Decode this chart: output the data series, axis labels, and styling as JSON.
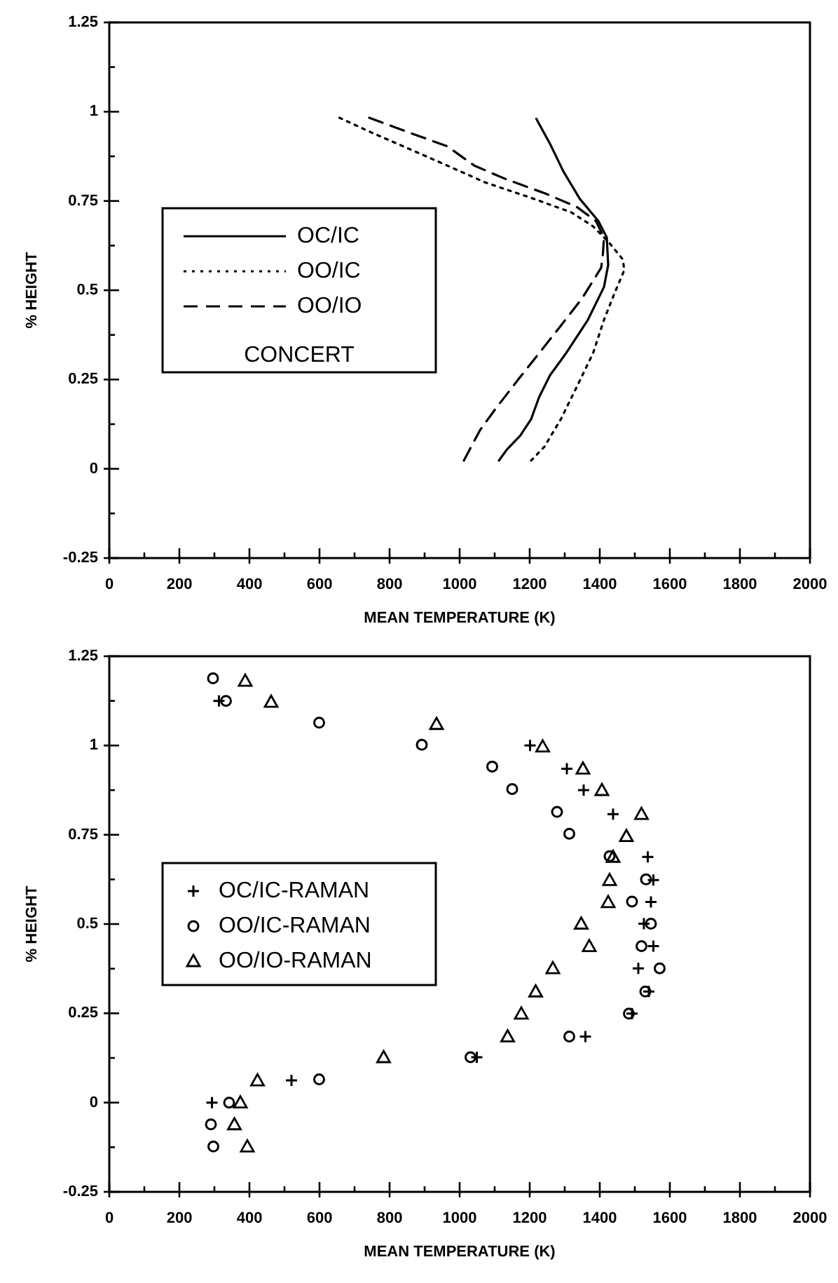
{
  "chart_data": [
    {
      "type": "line",
      "xlabel": "MEAN TEMPERATURE (K)",
      "ylabel": "% HEIGHT",
      "legend_title": "CONCERT",
      "legend": "center left",
      "grid": false,
      "xlim": [
        0,
        2000
      ],
      "ylim": [
        -0.25,
        1.25
      ],
      "xticks": [
        0,
        {
          "value": 100,
          "label": null
        },
        200,
        {
          "value": 300,
          "label": null
        },
        400,
        {
          "value": 500,
          "label": null
        },
        600,
        {
          "value": 700,
          "label": null
        },
        800,
        {
          "value": 900,
          "label": null
        },
        1000,
        {
          "value": 1100,
          "label": null
        },
        1200,
        {
          "value": 1300,
          "label": null
        },
        1400,
        {
          "value": 1500,
          "label": null
        },
        1600,
        {
          "value": 1700,
          "label": null
        },
        1800,
        {
          "value": 1900,
          "label": null
        },
        2000
      ],
      "yticks": [
        -0.25,
        {
          "value": -0.125,
          "label": null
        },
        0,
        {
          "value": 0.125,
          "label": null
        },
        0.25,
        {
          "value": 0.375,
          "label": null
        },
        0.5,
        {
          "value": 0.625,
          "label": null
        },
        0.75,
        {
          "value": 0.875,
          "label": null
        },
        1,
        {
          "value": 1.125,
          "label": null
        },
        1.25
      ],
      "series": [
        {
          "name": "OC/IC",
          "color": "#000000",
          "line_style": "solid",
          "x": [
            1219,
            1258,
            1296,
            1343,
            1396,
            1420,
            1424,
            1412,
            1366,
            1304,
            1258,
            1227,
            1204,
            1173,
            1135,
            1112
          ],
          "values": [
            0.98,
            0.91,
            0.833,
            0.756,
            0.694,
            0.648,
            0.571,
            0.509,
            0.417,
            0.324,
            0.262,
            0.201,
            0.139,
            0.093,
            0.054,
            0.023
          ]
        },
        {
          "name": "OO/IC",
          "color": "#000000",
          "line_style": "dotted",
          "x": [
            657,
            750,
            858,
            965,
            1073,
            1212,
            1319,
            1381,
            1427,
            1466,
            1470,
            1443,
            1412,
            1381,
            1335,
            1289,
            1242,
            1204
          ],
          "values": [
            0.983,
            0.941,
            0.895,
            0.849,
            0.802,
            0.756,
            0.718,
            0.679,
            0.633,
            0.586,
            0.556,
            0.494,
            0.417,
            0.324,
            0.231,
            0.139,
            0.062,
            0.023
          ]
        },
        {
          "name": "OO/IO",
          "color": "#000000",
          "line_style": "dashed",
          "x": [
            742,
            858,
            965,
            1042,
            1135,
            1242,
            1335,
            1389,
            1412,
            1409,
            1404,
            1350,
            1289,
            1227,
            1165,
            1104,
            1058,
            1012
          ],
          "values": [
            0.983,
            0.941,
            0.903,
            0.849,
            0.81,
            0.772,
            0.733,
            0.694,
            0.648,
            0.602,
            0.563,
            0.478,
            0.401,
            0.324,
            0.247,
            0.17,
            0.108,
            0.023
          ]
        }
      ]
    },
    {
      "type": "scatter",
      "xlabel": "MEAN TEMPERATURE (K)",
      "ylabel": "% HEIGHT",
      "legend": "center left",
      "grid": false,
      "xlim": [
        0,
        2000
      ],
      "ylim": [
        -0.25,
        1.25
      ],
      "xticks": [
        0,
        {
          "value": 100,
          "label": null
        },
        200,
        {
          "value": 300,
          "label": null
        },
        400,
        {
          "value": 500,
          "label": null
        },
        600,
        {
          "value": 700,
          "label": null
        },
        800,
        {
          "value": 900,
          "label": null
        },
        1000,
        {
          "value": 1100,
          "label": null
        },
        1200,
        {
          "value": 1300,
          "label": null
        },
        1400,
        {
          "value": 1500,
          "label": null
        },
        1600,
        {
          "value": 1700,
          "label": null
        },
        1800,
        {
          "value": 1900,
          "label": null
        },
        2000
      ],
      "yticks": [
        -0.25,
        {
          "value": -0.125,
          "label": null
        },
        0,
        {
          "value": 0.125,
          "label": null
        },
        0.25,
        {
          "value": 0.375,
          "label": null
        },
        0.5,
        {
          "value": 0.625,
          "label": null
        },
        0.75,
        {
          "value": 0.875,
          "label": null
        },
        1,
        {
          "value": 1.125,
          "label": null
        },
        1.25
      ],
      "series": [
        {
          "name": "OC/IC-RAMAN",
          "color": "#000000",
          "marker": "cross",
          "x": [
            313,
            1201,
            1306,
            1354,
            1438,
            1537,
            1553,
            1546,
            1526,
            1553,
            1510,
            1540,
            1492,
            1359,
            1049,
            520,
            293
          ],
          "values": [
            1.125,
            1.0,
            0.935,
            0.875,
            0.808,
            0.688,
            0.623,
            0.562,
            0.501,
            0.438,
            0.376,
            0.311,
            0.249,
            0.185,
            0.127,
            0.062,
            0.0
          ]
        },
        {
          "name": "OO/IC-RAMAN",
          "color": "#000000",
          "marker": "circle",
          "x": [
            296,
            333,
            599,
            892,
            1093,
            1150,
            1278,
            1313,
            1428,
            1532,
            1492,
            1546,
            1519,
            1571,
            1530,
            1483,
            1313,
            1031,
            599,
            342,
            290,
            297
          ],
          "values": [
            1.188,
            1.125,
            1.064,
            1.002,
            0.941,
            0.878,
            0.814,
            0.753,
            0.69,
            0.625,
            0.563,
            0.501,
            0.438,
            0.376,
            0.311,
            0.249,
            0.185,
            0.127,
            0.065,
            0.0,
            -0.061,
            -0.123
          ]
        },
        {
          "name": "OO/IO-RAMAN",
          "color": "#000000",
          "marker": "triangle",
          "x": [
            388,
            462,
            934,
            1237,
            1352,
            1406,
            1519,
            1476,
            1438,
            1428,
            1424,
            1347,
            1370,
            1266,
            1217,
            1176,
            1137,
            783,
            423,
            374,
            357,
            394
          ],
          "values": [
            1.181,
            1.122,
            1.06,
            0.997,
            0.935,
            0.875,
            0.808,
            0.746,
            0.688,
            0.623,
            0.561,
            0.501,
            0.438,
            0.376,
            0.311,
            0.249,
            0.185,
            0.127,
            0.062,
            0.0,
            -0.061,
            -0.123
          ]
        }
      ]
    }
  ]
}
